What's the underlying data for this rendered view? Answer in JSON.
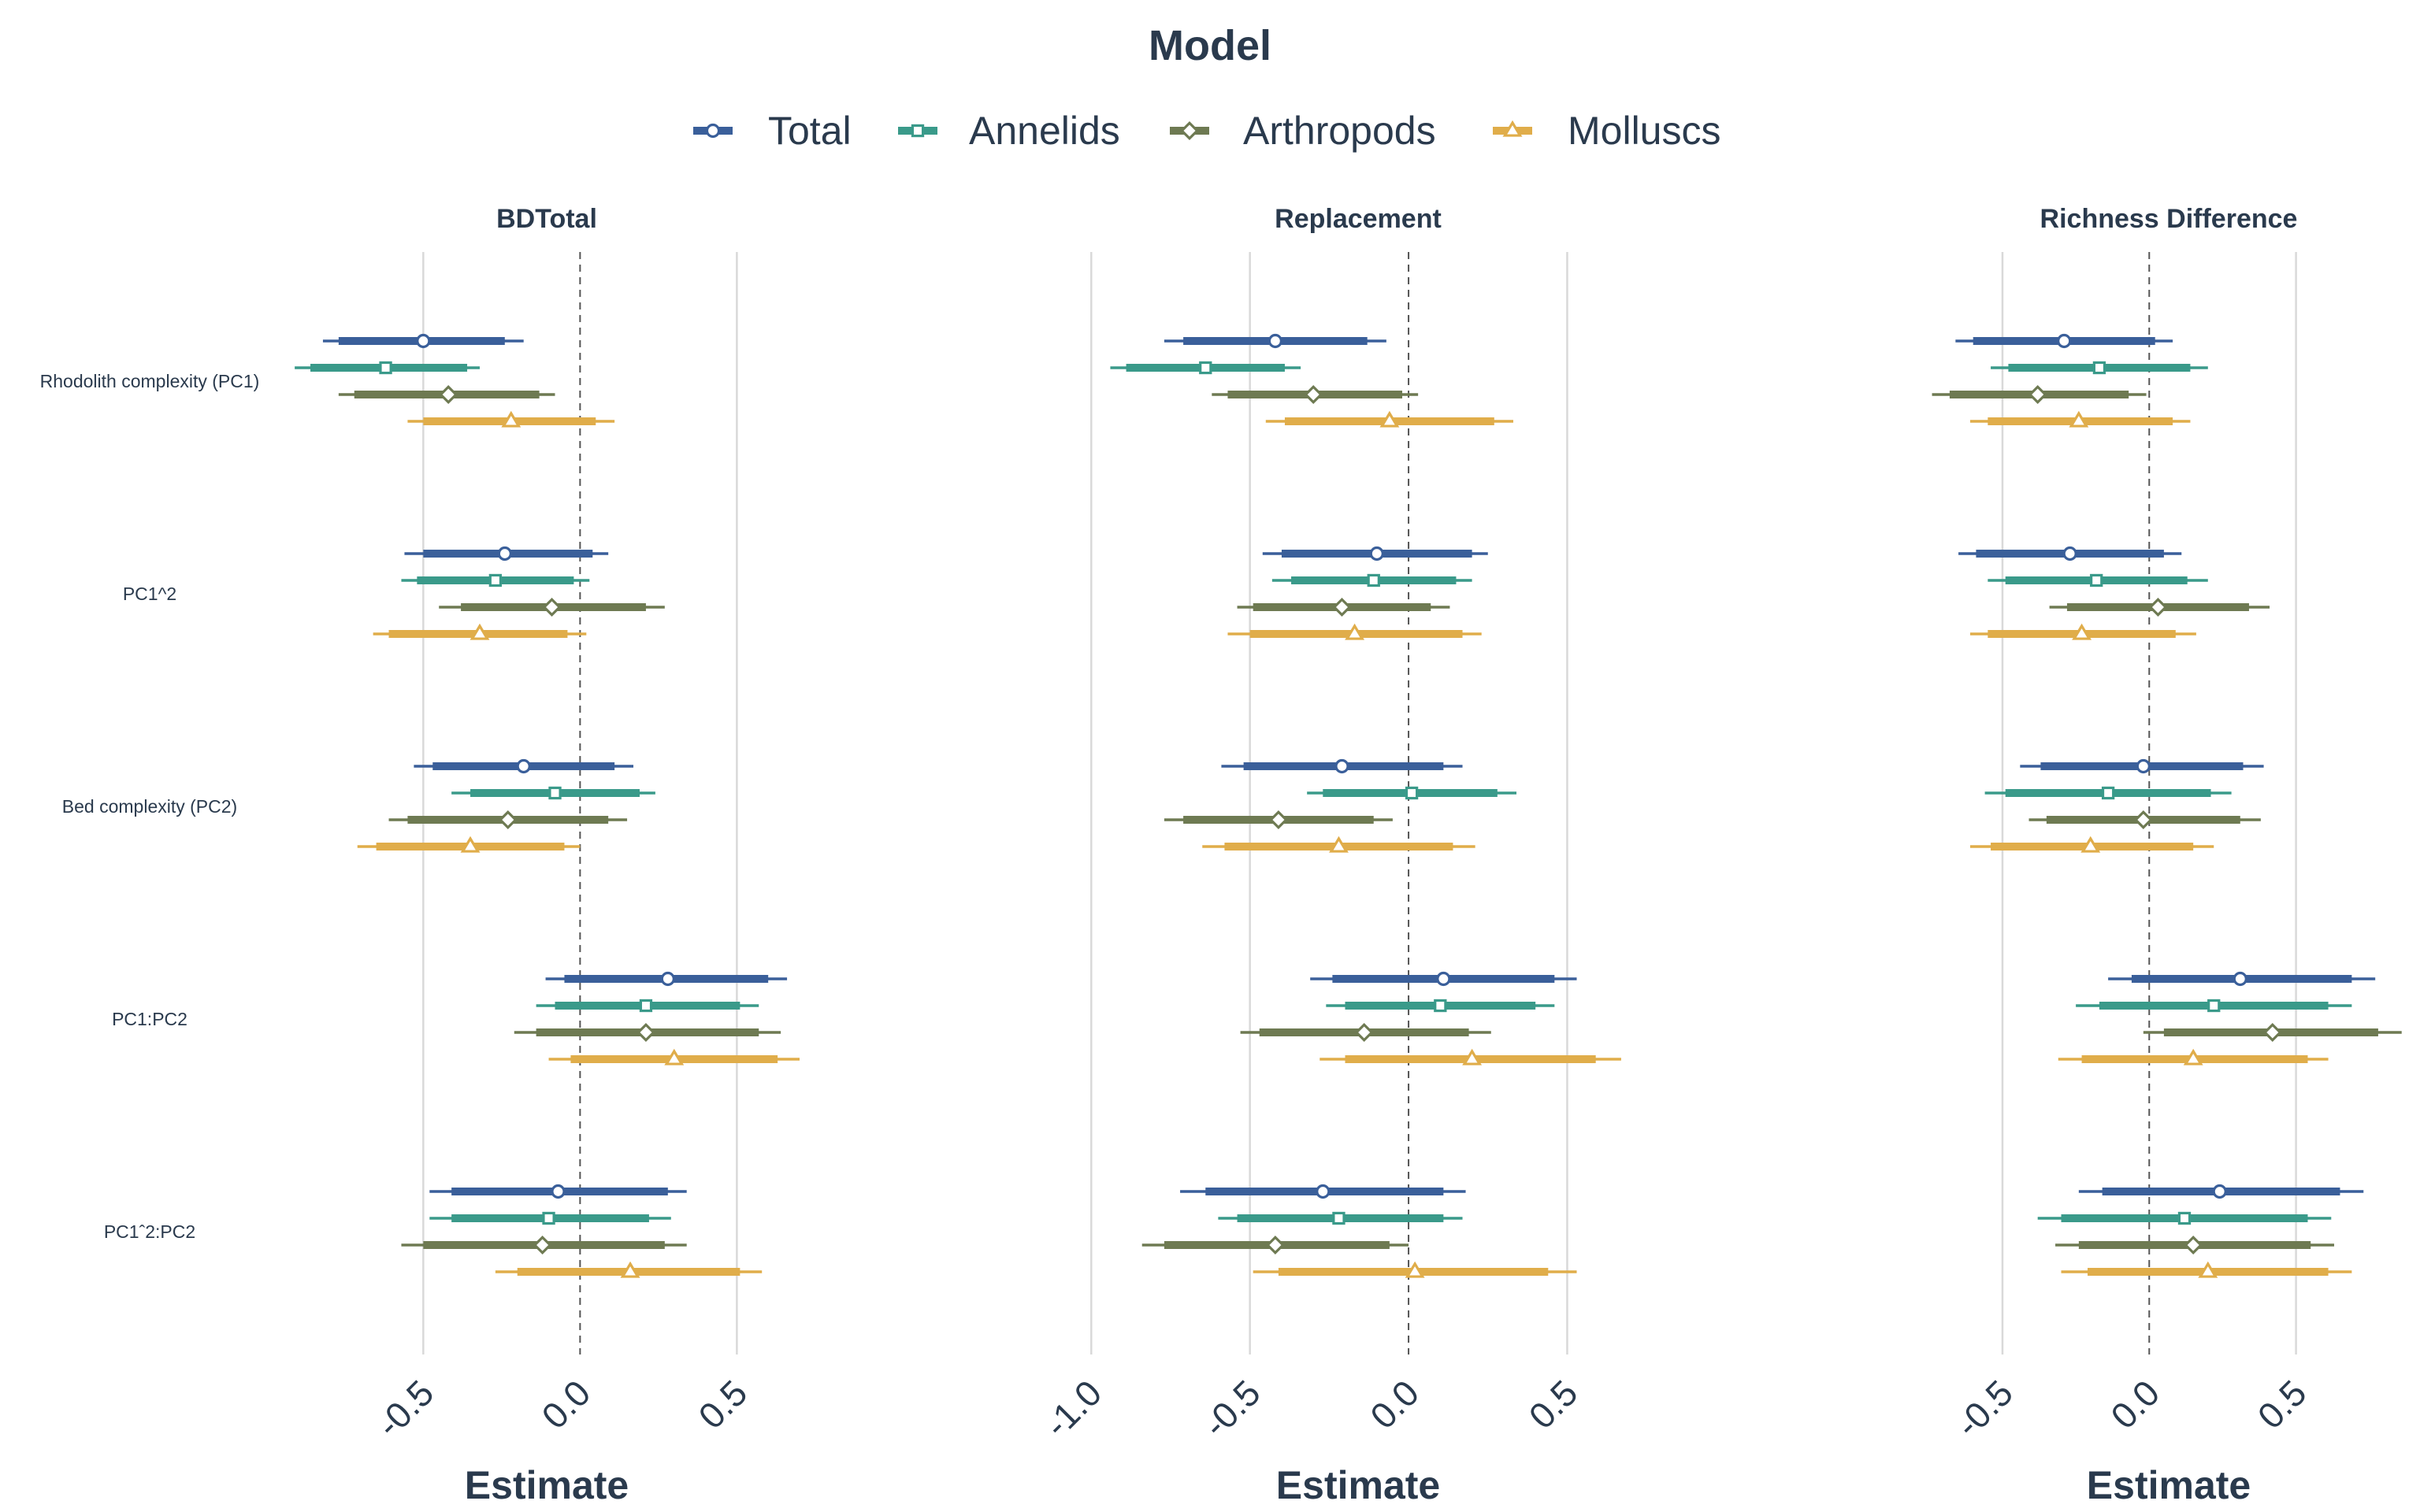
{
  "legend": {
    "title": "Model",
    "items": [
      {
        "label": "Total",
        "color": "#3a5f9a",
        "shape": "circle"
      },
      {
        "label": "Annelids",
        "color": "#3a9a8a",
        "shape": "square"
      },
      {
        "label": "Arthropods",
        "color": "#6e7a52",
        "shape": "diamond"
      },
      {
        "label": "Molluscs",
        "color": "#e0ad4a",
        "shape": "triangle"
      }
    ]
  },
  "chart_data": {
    "type": "scatter",
    "subtype": "coefficient-interval-plot",
    "terms": [
      "Rhodolith complexity (PC1)",
      "PC1^2",
      "Bed complexity (PC2)",
      "PC1:PC2",
      "PC1ˆ2:PC2"
    ],
    "series": [
      "Total",
      "Annelids",
      "Arthropods",
      "Molluscs"
    ],
    "xlabel": "Estimate",
    "panels": [
      {
        "title": "BDTotal",
        "xlim": [
          -0.85,
          0.7
        ],
        "ticks": [
          -0.5,
          0.0,
          0.5
        ],
        "tick_labels": [
          "-0.5",
          "0.0",
          "0.5"
        ],
        "estimates": [
          [
            [
              -0.5,
              -0.77,
              -0.24,
              -0.82,
              -0.18
            ],
            [
              -0.62,
              -0.86,
              -0.36,
              -0.91,
              -0.32
            ],
            [
              -0.42,
              -0.72,
              -0.13,
              -0.77,
              -0.08
            ],
            [
              -0.22,
              -0.5,
              0.05,
              -0.55,
              0.11
            ]
          ],
          [
            [
              -0.24,
              -0.5,
              0.04,
              -0.56,
              0.09
            ],
            [
              -0.27,
              -0.52,
              -0.02,
              -0.57,
              0.03
            ],
            [
              -0.09,
              -0.38,
              0.21,
              -0.45,
              0.27
            ],
            [
              -0.32,
              -0.61,
              -0.04,
              -0.66,
              0.02
            ]
          ],
          [
            [
              -0.18,
              -0.47,
              0.11,
              -0.53,
              0.17
            ],
            [
              -0.08,
              -0.35,
              0.19,
              -0.41,
              0.24
            ],
            [
              -0.23,
              -0.55,
              0.09,
              -0.61,
              0.15
            ],
            [
              -0.35,
              -0.65,
              -0.05,
              -0.71,
              0.0
            ]
          ],
          [
            [
              0.28,
              -0.05,
              0.6,
              -0.11,
              0.66
            ],
            [
              0.21,
              -0.08,
              0.51,
              -0.14,
              0.57
            ],
            [
              0.21,
              -0.14,
              0.57,
              -0.21,
              0.64
            ],
            [
              0.3,
              -0.03,
              0.63,
              -0.1,
              0.7
            ]
          ],
          [
            [
              -0.07,
              -0.41,
              0.28,
              -0.48,
              0.34
            ],
            [
              -0.1,
              -0.41,
              0.22,
              -0.48,
              0.29
            ],
            [
              -0.12,
              -0.5,
              0.27,
              -0.57,
              0.34
            ],
            [
              0.16,
              -0.2,
              0.51,
              -0.27,
              0.58
            ]
          ]
        ]
      },
      {
        "title": "Replacement",
        "xlim": [
          -1.1,
          0.7
        ],
        "ticks": [
          -1.0,
          -0.5,
          0.0,
          0.5
        ],
        "tick_labels": [
          "-1.0",
          "-0.5",
          "0.0",
          "0.5"
        ],
        "estimates": [
          [
            [
              -0.42,
              -0.71,
              -0.13,
              -0.77,
              -0.07
            ],
            [
              -0.64,
              -0.89,
              -0.39,
              -0.94,
              -0.34
            ],
            [
              -0.3,
              -0.57,
              -0.02,
              -0.62,
              0.03
            ],
            [
              -0.06,
              -0.39,
              0.27,
              -0.45,
              0.33
            ]
          ],
          [
            [
              -0.1,
              -0.4,
              0.2,
              -0.46,
              0.25
            ],
            [
              -0.11,
              -0.37,
              0.15,
              -0.43,
              0.2
            ],
            [
              -0.21,
              -0.49,
              0.07,
              -0.54,
              0.13
            ],
            [
              -0.17,
              -0.5,
              0.17,
              -0.57,
              0.23
            ]
          ],
          [
            [
              -0.21,
              -0.52,
              0.11,
              -0.59,
              0.17
            ],
            [
              0.01,
              -0.27,
              0.28,
              -0.32,
              0.34
            ],
            [
              -0.41,
              -0.71,
              -0.11,
              -0.77,
              -0.05
            ],
            [
              -0.22,
              -0.58,
              0.14,
              -0.65,
              0.21
            ]
          ],
          [
            [
              0.11,
              -0.24,
              0.46,
              -0.31,
              0.53
            ],
            [
              0.1,
              -0.2,
              0.4,
              -0.26,
              0.46
            ],
            [
              -0.14,
              -0.47,
              0.19,
              -0.53,
              0.26
            ],
            [
              0.2,
              -0.2,
              0.59,
              -0.28,
              0.67
            ]
          ],
          [
            [
              -0.27,
              -0.64,
              0.11,
              -0.72,
              0.18
            ],
            [
              -0.22,
              -0.54,
              0.11,
              -0.6,
              0.17
            ],
            [
              -0.42,
              -0.77,
              -0.06,
              -0.84,
              0.0
            ],
            [
              0.02,
              -0.41,
              0.44,
              -0.49,
              0.53
            ]
          ]
        ]
      },
      {
        "title": "Richness Difference",
        "xlim": [
          -0.72,
          0.85
        ],
        "ticks": [
          -0.5,
          0.0,
          0.5
        ],
        "tick_labels": [
          "-0.5",
          "0.0",
          "0.5"
        ],
        "estimates": [
          [
            [
              -0.29,
              -0.6,
              0.02,
              -0.66,
              0.08
            ],
            [
              -0.17,
              -0.48,
              0.14,
              -0.54,
              0.2
            ],
            [
              -0.38,
              -0.68,
              -0.07,
              -0.74,
              -0.01
            ],
            [
              -0.24,
              -0.55,
              0.08,
              -0.61,
              0.14
            ]
          ],
          [
            [
              -0.27,
              -0.59,
              0.05,
              -0.65,
              0.11
            ],
            [
              -0.18,
              -0.49,
              0.13,
              -0.55,
              0.2
            ],
            [
              0.03,
              -0.28,
              0.34,
              -0.34,
              0.41
            ],
            [
              -0.23,
              -0.55,
              0.09,
              -0.61,
              0.16
            ]
          ],
          [
            [
              -0.02,
              -0.37,
              0.32,
              -0.44,
              0.39
            ],
            [
              -0.14,
              -0.49,
              0.21,
              -0.56,
              0.28
            ],
            [
              -0.02,
              -0.35,
              0.31,
              -0.41,
              0.38
            ],
            [
              -0.2,
              -0.54,
              0.15,
              -0.61,
              0.22
            ]
          ],
          [
            [
              0.31,
              -0.06,
              0.69,
              -0.14,
              0.77
            ],
            [
              0.22,
              -0.17,
              0.61,
              -0.25,
              0.69
            ],
            [
              0.42,
              0.05,
              0.78,
              -0.02,
              0.86
            ],
            [
              0.15,
              -0.23,
              0.54,
              -0.31,
              0.61
            ]
          ],
          [
            [
              0.24,
              -0.16,
              0.65,
              -0.24,
              0.73
            ],
            [
              0.12,
              -0.3,
              0.54,
              -0.38,
              0.62
            ],
            [
              0.15,
              -0.24,
              0.55,
              -0.32,
              0.63
            ],
            [
              0.2,
              -0.21,
              0.61,
              -0.3,
              0.69
            ]
          ]
        ]
      }
    ]
  }
}
